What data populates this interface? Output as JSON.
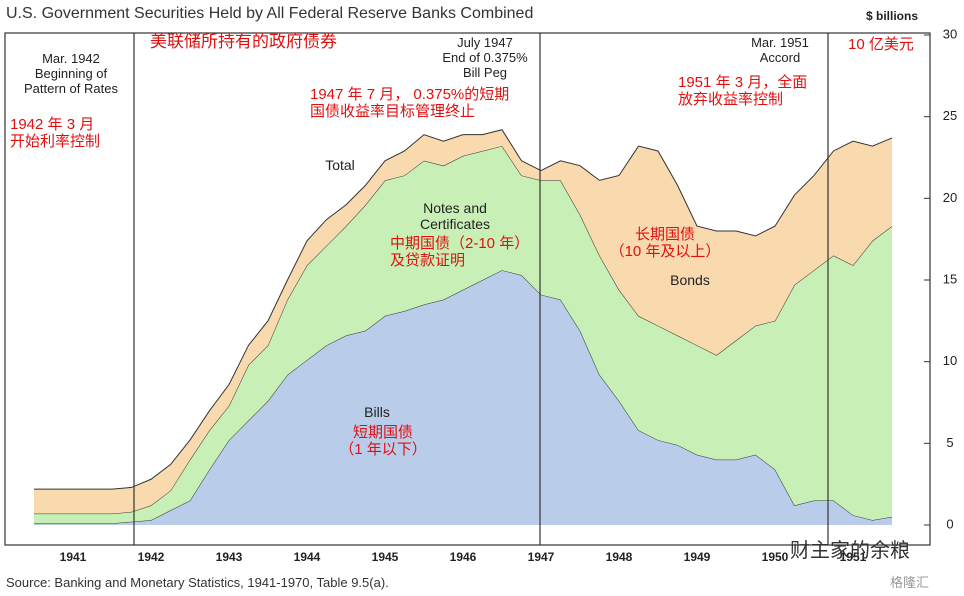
{
  "chart_data": {
    "type": "stacked_area",
    "title": "U.S. Government Securities Held by All Federal Reserve Banks Combined",
    "y_axis_label": "$ billions",
    "y_axis_label_zh": "10 亿美元",
    "title_zh": "美联储所持有的政府债券",
    "source": "Source:  Banking and Monetary Statistics, 1941-1970, Table 9.5(a).",
    "total_label": "Total",
    "annotations": [
      "Mar. 1942\nBeginning of\nPattern of Rates",
      "July 1947\nEnd of 0.375%\nBill Peg",
      "Mar. 1951\nAccord"
    ],
    "annotations_zh": [
      "1942 年 3 月\n开始利率控制",
      "1947 年 7 月，  0.375%的短期\n国债收益率目标管理终止",
      "1951 年 3 月，全面\n放弃收益率控制",
      "短期国债\n（1 年以下）",
      "中期国债（2-10 年）\n及贷款证明",
      "长期国债\n（10 年及以上）"
    ],
    "watermark": [
      "财主家的余粮",
      "格隆汇"
    ],
    "categories": [
      null,
      null,
      "1941",
      null,
      null,
      null,
      "1942",
      null,
      null,
      null,
      "1943",
      null,
      null,
      null,
      "1944",
      null,
      null,
      null,
      "1945",
      null,
      null,
      null,
      "1946",
      null,
      null,
      null,
      "1947",
      null,
      null,
      null,
      "1948",
      null,
      null,
      null,
      "1949",
      null,
      null,
      null,
      "1950",
      null,
      null,
      null,
      "1951",
      null,
      null
    ],
    "series": [
      {
        "name": "Bills",
        "color": "#b9cdea",
        "values": [
          0.1,
          0.1,
          0.1,
          0.1,
          0.1,
          0.2,
          0.3,
          0.9,
          1.5,
          3.4,
          5.2,
          6.4,
          7.6,
          9.2,
          10.1,
          11.0,
          11.6,
          11.9,
          12.8,
          13.1,
          13.5,
          13.8,
          14.4,
          15.0,
          15.6,
          15.3,
          14.1,
          13.8,
          11.9,
          9.2,
          7.6,
          5.8,
          5.2,
          4.9,
          4.3,
          4.0,
          4.0,
          4.3,
          3.4,
          1.2,
          1.5,
          1.5,
          0.6,
          0.3,
          0.5
        ]
      },
      {
        "name": "Notes and Certificates",
        "color": "#c8f0b6",
        "values": [
          0.6,
          0.6,
          0.6,
          0.6,
          0.6,
          0.6,
          0.9,
          1.2,
          2.5,
          2.4,
          2.1,
          3.4,
          3.4,
          4.6,
          5.8,
          6.1,
          6.7,
          7.7,
          8.3,
          8.3,
          8.8,
          8.2,
          8.2,
          7.9,
          7.6,
          6.1,
          7.0,
          7.3,
          7.1,
          7.3,
          6.8,
          7.0,
          7.0,
          6.7,
          6.7,
          6.4,
          7.3,
          7.9,
          9.1,
          13.5,
          14.1,
          15.0,
          15.3,
          17.1,
          17.8
        ]
      },
      {
        "name": "Bonds",
        "color": "#f9d9ae",
        "values": [
          1.5,
          1.5,
          1.5,
          1.5,
          1.5,
          1.5,
          1.6,
          1.6,
          1.2,
          1.2,
          1.3,
          1.2,
          1.5,
          1.2,
          1.5,
          1.6,
          1.3,
          1.2,
          1.2,
          1.5,
          1.6,
          1.5,
          1.3,
          1.0,
          1.0,
          0.9,
          0.6,
          1.2,
          3.0,
          4.6,
          7.0,
          10.4,
          10.7,
          9.2,
          7.3,
          7.6,
          6.7,
          5.5,
          5.8,
          5.5,
          5.8,
          6.4,
          7.6,
          5.8,
          5.4
        ]
      }
    ],
    "ylim": [
      0,
      30
    ],
    "yticks": [
      0,
      5,
      10,
      15,
      20,
      25,
      30
    ],
    "y_axis_side": "right"
  }
}
